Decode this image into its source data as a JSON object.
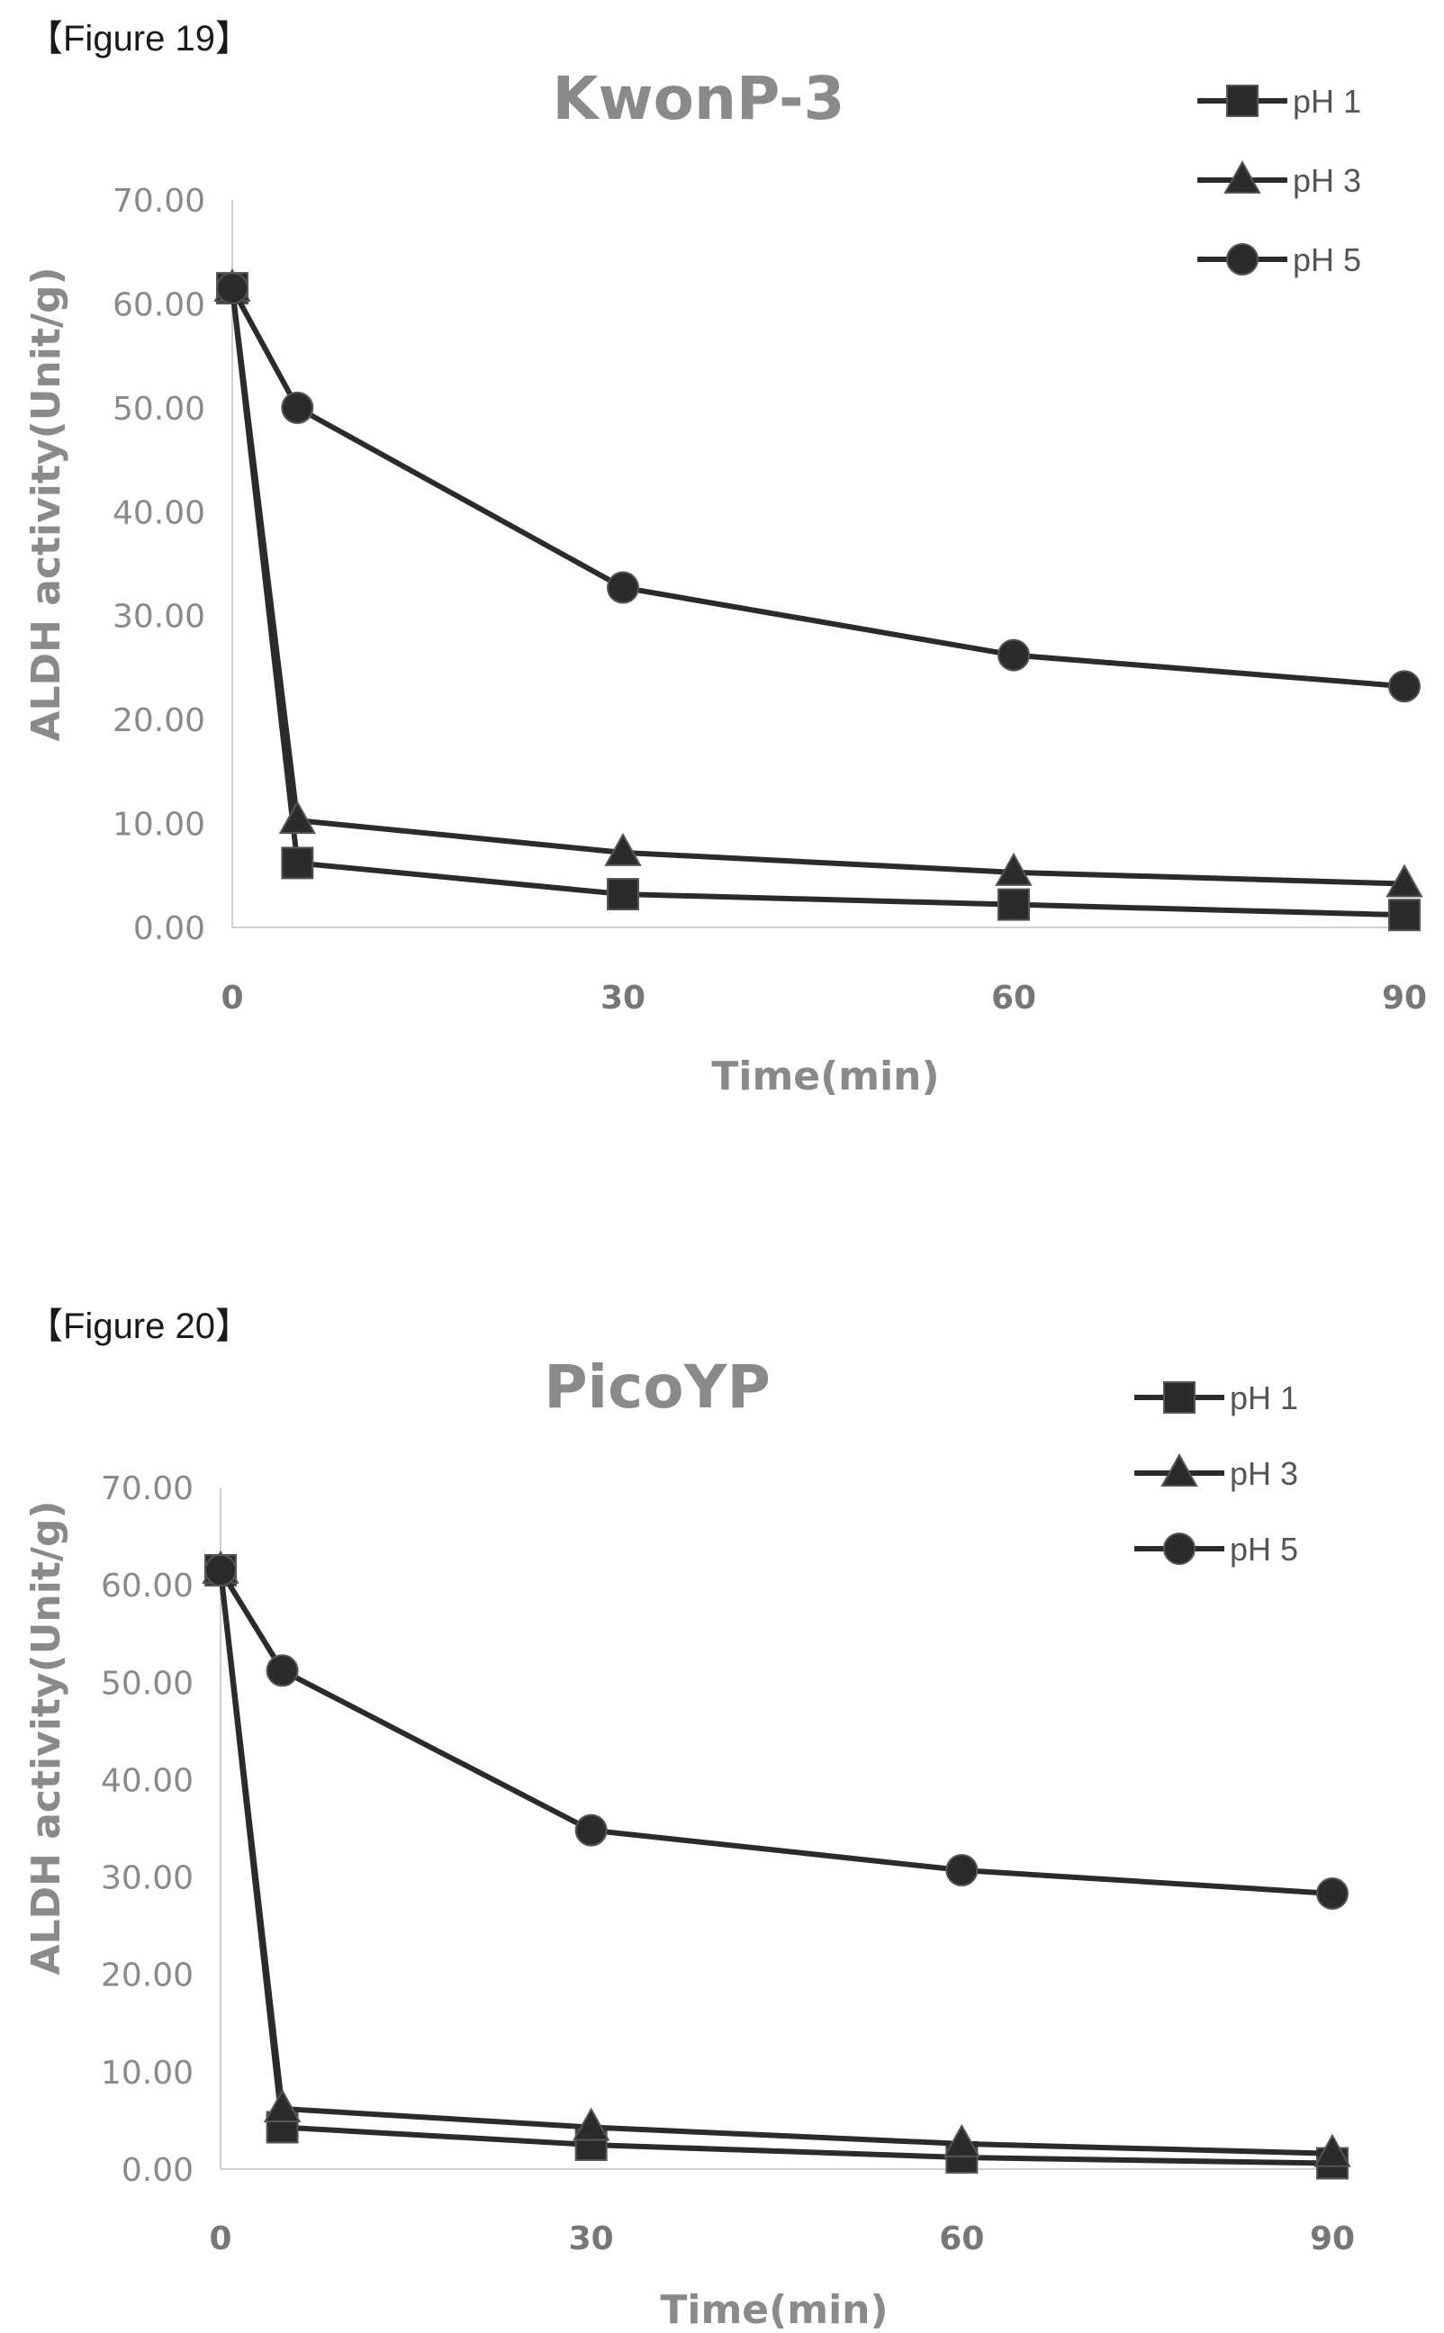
{
  "figures": [
    {
      "label": "【Figure 19】"
    },
    {
      "label": "【Figure 20】"
    }
  ],
  "chart_data": [
    {
      "type": "line",
      "title": "KwonP-3",
      "xlabel": "Time(min)",
      "ylabel": "ALDH activity(Unit/g)",
      "ylim": [
        0,
        70
      ],
      "yticks": [
        "0.00",
        "10.00",
        "20.00",
        "30.00",
        "40.00",
        "50.00",
        "60.00",
        "70.00"
      ],
      "xlim": [
        0,
        90
      ],
      "xticks": [
        "0",
        "30",
        "60",
        "90"
      ],
      "legend_position": "top-right",
      "series": [
        {
          "name": "pH 1",
          "marker": "square",
          "x": [
            0,
            5,
            30,
            60,
            90
          ],
          "y": [
            61.5,
            6.2,
            3.2,
            2.2,
            1.2
          ]
        },
        {
          "name": "pH 3",
          "marker": "triangle",
          "x": [
            0,
            5,
            30,
            60,
            90
          ],
          "y": [
            61.5,
            10.3,
            7.2,
            5.3,
            4.2
          ]
        },
        {
          "name": "pH 5",
          "marker": "circle",
          "x": [
            0,
            5,
            30,
            60,
            90
          ],
          "y": [
            61.5,
            50.0,
            32.7,
            26.2,
            23.2
          ]
        }
      ]
    },
    {
      "type": "line",
      "title": "PicoYP",
      "xlabel": "Time(min)",
      "ylabel": "ALDH activity(Unit/g)",
      "ylim": [
        0,
        70
      ],
      "yticks": [
        "0.00",
        "10.00",
        "20.00",
        "30.00",
        "40.00",
        "50.00",
        "60.00",
        "70.00"
      ],
      "xlim": [
        0,
        90
      ],
      "xticks": [
        "0",
        "30",
        "60",
        "90"
      ],
      "legend_position": "top-right",
      "series": [
        {
          "name": "pH 1",
          "marker": "square",
          "x": [
            0,
            5,
            30,
            60,
            90
          ],
          "y": [
            61.5,
            4.3,
            2.5,
            1.2,
            0.6
          ]
        },
        {
          "name": "pH 3",
          "marker": "triangle",
          "x": [
            0,
            5,
            30,
            60,
            90
          ],
          "y": [
            61.5,
            6.2,
            4.3,
            2.6,
            1.6
          ]
        },
        {
          "name": "pH 5",
          "marker": "circle",
          "x": [
            0,
            5,
            30,
            60,
            90
          ],
          "y": [
            61.5,
            51.2,
            34.8,
            30.7,
            28.3
          ]
        }
      ]
    }
  ]
}
